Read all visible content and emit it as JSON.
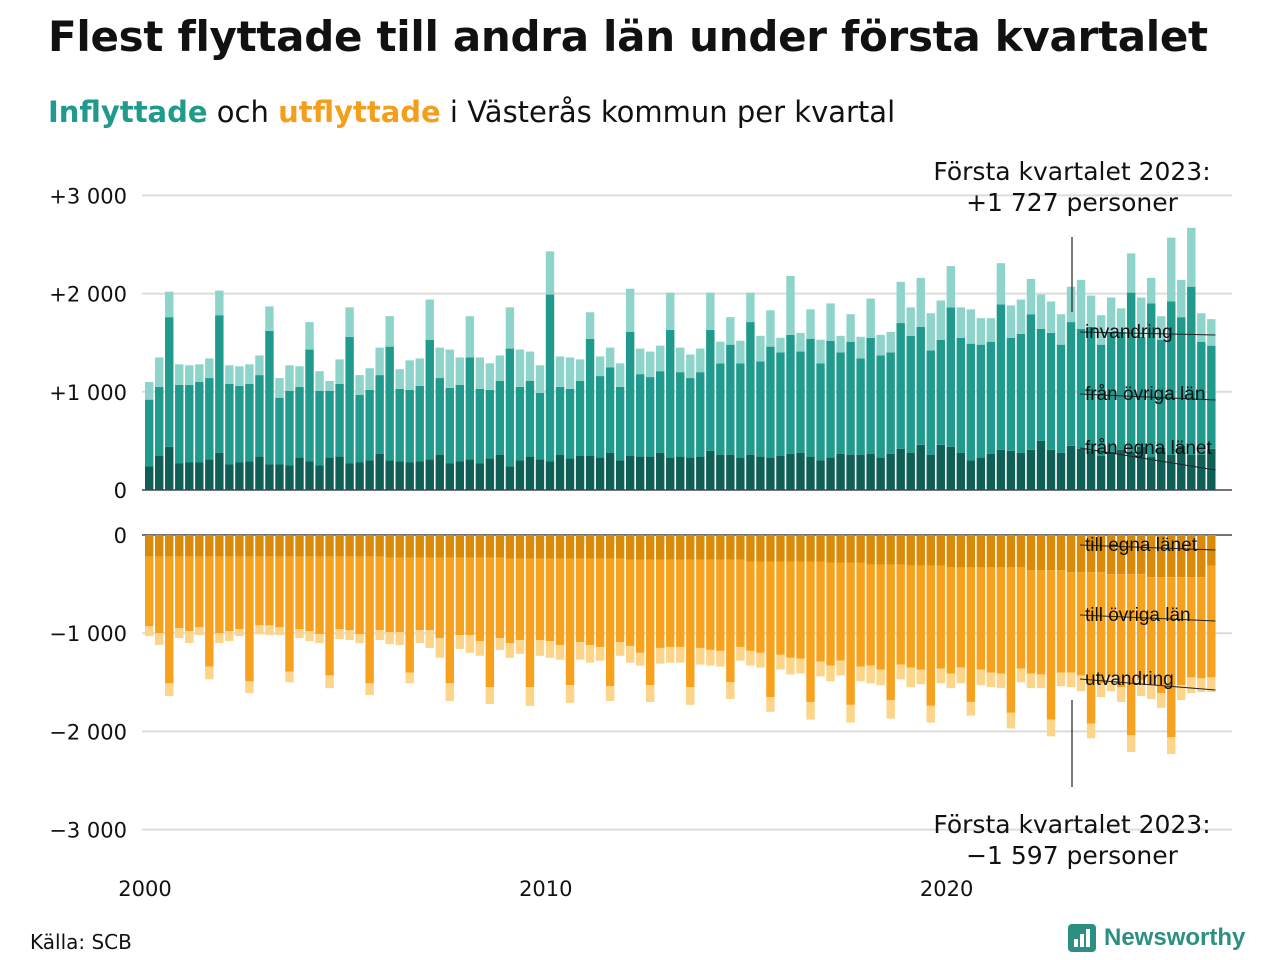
{
  "title": "Flest flyttade till andra län under första kvartalet",
  "subtitle": {
    "inflow_word": "Inflyttade",
    "mid": " och ",
    "outflow_word": "utflyttade",
    "rest": " i Västerås kommun per kvartal"
  },
  "source": "Källa: SCB",
  "brand": "Newsworthy",
  "colors": {
    "in_own": "#0f5f57",
    "in_other": "#1f9a8c",
    "in_imm": "#8fd4cb",
    "out_own": "#d98a08",
    "out_other": "#f7a21e",
    "out_emi": "#fcd48a"
  },
  "annotations": {
    "top": [
      "Första kvartalet 2023:",
      "+1 727 personer"
    ],
    "bottom": [
      "Första kvartalet 2023:",
      "−1 597 personer"
    ]
  },
  "chart_data": {
    "type": "bar",
    "stacked": true,
    "x_start": "2000 Q1",
    "x_ticks": [
      "2000",
      "2010",
      "2020"
    ],
    "inflow_panel": {
      "ylim": [
        0,
        3000
      ],
      "y_ticks": [
        0,
        1000,
        2000,
        3000
      ],
      "y_tick_labels": [
        "0",
        "+1 000",
        "+2 000",
        "+3 000"
      ],
      "series": [
        {
          "name": "från egna länet",
          "values": [
            240,
            350,
            440,
            270,
            280,
            280,
            310,
            380,
            260,
            280,
            290,
            340,
            260,
            260,
            250,
            330,
            290,
            250,
            330,
            340,
            270,
            280,
            300,
            370,
            300,
            290,
            280,
            290,
            310,
            360,
            270,
            290,
            310,
            270,
            320,
            360,
            240,
            300,
            340,
            310,
            290,
            360,
            320,
            350,
            350,
            330,
            380,
            300,
            350,
            340,
            340,
            380,
            330,
            340,
            330,
            340,
            400,
            360,
            360,
            330,
            360,
            340,
            330,
            350,
            370,
            380,
            340,
            300,
            330,
            370,
            360,
            360,
            370,
            330,
            370,
            420,
            380,
            460,
            360,
            460,
            440,
            380,
            300,
            330,
            370,
            410,
            400,
            380,
            410,
            500,
            410,
            380,
            450,
            420,
            400,
            350,
            390,
            410,
            390,
            440,
            340,
            430,
            360,
            450,
            360,
            360,
            420
          ]
        },
        {
          "name": "från övriga län",
          "values": [
            680,
            700,
            1320,
            800,
            790,
            820,
            830,
            1400,
            820,
            780,
            790,
            830,
            1360,
            680,
            760,
            720,
            1140,
            760,
            680,
            740,
            1290,
            690,
            720,
            800,
            1160,
            740,
            740,
            770,
            1220,
            780,
            770,
            780,
            1040,
            760,
            700,
            750,
            1200,
            750,
            770,
            680,
            1700,
            690,
            710,
            760,
            1190,
            830,
            870,
            750,
            1260,
            840,
            810,
            830,
            1300,
            860,
            810,
            860,
            1230,
            930,
            1120,
            960,
            1350,
            970,
            1130,
            1050,
            1210,
            1030,
            1200,
            990,
            1190,
            1030,
            1150,
            980,
            1180,
            1040,
            1030,
            1280,
            1190,
            1200,
            1060,
            1070,
            1420,
            1170,
            1190,
            1150,
            1140,
            1480,
            1150,
            1210,
            1380,
            1140,
            1190,
            1100,
            1260,
            1220,
            1260,
            1130,
            1220,
            1200,
            1620,
            1120,
            1560,
            1100,
            1560,
            1310,
            1710,
            1150,
            1050
          ]
        },
        {
          "name": "invandring",
          "values": [
            180,
            300,
            260,
            210,
            200,
            180,
            200,
            250,
            190,
            200,
            200,
            200,
            250,
            200,
            260,
            210,
            280,
            200,
            100,
            250,
            300,
            200,
            220,
            280,
            310,
            200,
            300,
            280,
            410,
            310,
            390,
            280,
            420,
            320,
            270,
            260,
            420,
            380,
            300,
            280,
            440,
            310,
            320,
            220,
            270,
            200,
            200,
            240,
            440,
            260,
            260,
            260,
            380,
            250,
            240,
            240,
            380,
            220,
            280,
            230,
            300,
            260,
            370,
            150,
            600,
            190,
            300,
            240,
            380,
            170,
            280,
            220,
            400,
            210,
            210,
            420,
            290,
            500,
            380,
            400,
            420,
            310,
            350,
            270,
            240,
            420,
            330,
            350,
            360,
            350,
            320,
            310,
            360,
            500,
            320,
            300,
            350,
            240,
            400,
            400,
            260,
            240,
            650,
            380,
            600,
            290,
            270
          ]
        }
      ]
    },
    "outflow_panel": {
      "ylim": [
        -3000,
        0
      ],
      "y_ticks": [
        0,
        -1000,
        -2000,
        -3000
      ],
      "y_tick_labels": [
        "0",
        "−1 000",
        "−2 000",
        "−3 000"
      ],
      "series": [
        {
          "name": "till egna länet",
          "values": [
            -220,
            -220,
            -220,
            -220,
            -220,
            -220,
            -220,
            -220,
            -220,
            -220,
            -220,
            -220,
            -220,
            -220,
            -220,
            -220,
            -220,
            -220,
            -220,
            -220,
            -220,
            -220,
            -220,
            -220,
            -230,
            -230,
            -230,
            -230,
            -230,
            -230,
            -230,
            -230,
            -230,
            -230,
            -230,
            -230,
            -240,
            -240,
            -240,
            -240,
            -240,
            -240,
            -240,
            -240,
            -240,
            -240,
            -240,
            -240,
            -250,
            -250,
            -250,
            -250,
            -250,
            -250,
            -250,
            -250,
            -250,
            -250,
            -250,
            -250,
            -270,
            -270,
            -270,
            -270,
            -270,
            -270,
            -270,
            -270,
            -280,
            -280,
            -280,
            -280,
            -300,
            -300,
            -300,
            -300,
            -310,
            -310,
            -310,
            -310,
            -330,
            -330,
            -330,
            -330,
            -330,
            -330,
            -330,
            -330,
            -360,
            -360,
            -360,
            -360,
            -380,
            -380,
            -380,
            -380,
            -400,
            -400,
            -400,
            -400,
            -430,
            -430,
            -430,
            -430,
            -430,
            -430,
            -310
          ]
        },
        {
          "name": "till övriga län",
          "values": [
            -710,
            -780,
            -1290,
            -730,
            -760,
            -720,
            -1120,
            -780,
            -760,
            -740,
            -1270,
            -700,
            -700,
            -720,
            -1170,
            -740,
            -760,
            -790,
            -1210,
            -740,
            -750,
            -790,
            -1290,
            -750,
            -760,
            -760,
            -1170,
            -740,
            -740,
            -820,
            -1280,
            -790,
            -790,
            -850,
            -1320,
            -820,
            -860,
            -830,
            -1310,
            -830,
            -840,
            -880,
            -1290,
            -850,
            -880,
            -900,
            -1300,
            -850,
            -880,
            -950,
            -1280,
            -900,
            -890,
            -890,
            -1300,
            -900,
            -920,
            -930,
            -1250,
            -890,
            -910,
            -930,
            -1380,
            -950,
            -980,
            -990,
            -1430,
            -1020,
            -1050,
            -1000,
            -1450,
            -1060,
            -1030,
            -1070,
            -1380,
            -1020,
            -1040,
            -1060,
            -1430,
            -1050,
            -1080,
            -1020,
            -1370,
            -1040,
            -1070,
            -1080,
            -1480,
            -1030,
            -1050,
            -1060,
            -1520,
            -1040,
            -1020,
            -1050,
            -1540,
            -1130,
            -1040,
            -1150,
            -1640,
            -1080,
            -1090,
            -1180,
            -1630,
            -1100,
            -1020,
            -1030,
            -1140
          ]
        },
        {
          "name": "utvandring",
          "values": [
            -100,
            -120,
            -130,
            -100,
            -120,
            -80,
            -130,
            -100,
            -100,
            -70,
            -120,
            -90,
            -100,
            -80,
            -110,
            -90,
            -100,
            -90,
            -130,
            -100,
            -100,
            -90,
            -120,
            -100,
            -120,
            -130,
            -110,
            -130,
            -180,
            -200,
            -180,
            -140,
            -180,
            -150,
            -170,
            -120,
            -150,
            -140,
            -190,
            -160,
            -170,
            -150,
            -180,
            -180,
            -180,
            -140,
            -150,
            -140,
            -170,
            -130,
            -170,
            -160,
            -160,
            -160,
            -180,
            -170,
            -160,
            -160,
            -170,
            -140,
            -150,
            -150,
            -150,
            -150,
            -170,
            -150,
            -180,
            -150,
            -160,
            -150,
            -180,
            -150,
            -180,
            -160,
            -190,
            -150,
            -200,
            -150,
            -170,
            -150,
            -150,
            -160,
            -140,
            -160,
            -150,
            -150,
            -160,
            -140,
            -150,
            -140,
            -170,
            -140,
            -150,
            -160,
            -150,
            -140,
            -150,
            -150,
            -170,
            -160,
            -150,
            -150,
            -170,
            -150,
            -160,
            -140,
            -150
          ]
        }
      ]
    },
    "series_labels": {
      "inflow": [
        "invandring",
        "från övriga län",
        "från egna länet"
      ],
      "outflow": [
        "till egna länet",
        "till övriga län",
        "utvandring"
      ]
    }
  }
}
